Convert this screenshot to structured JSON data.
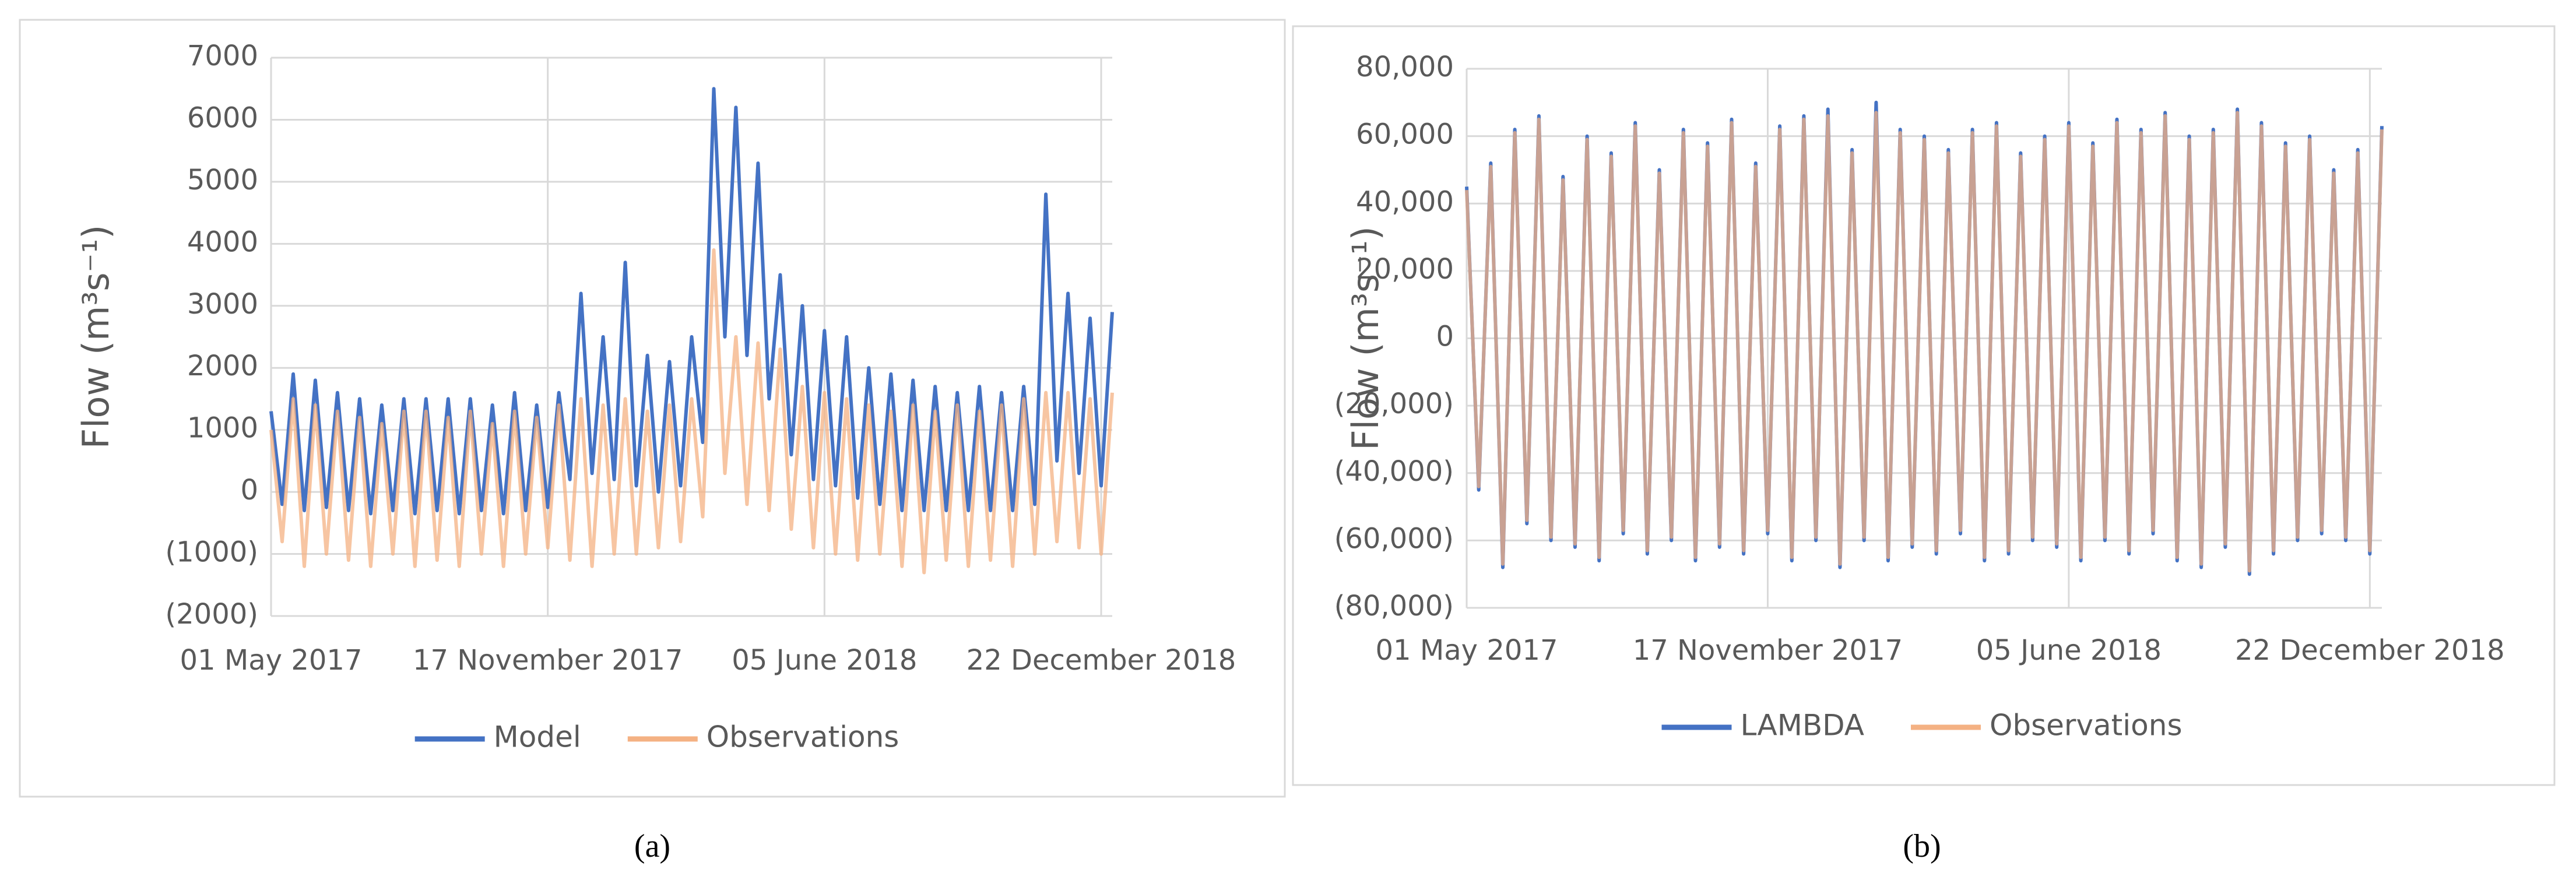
{
  "chart_data": [
    {
      "type": "line",
      "caption": "(a)",
      "y_label": "Flow (m³s⁻¹)",
      "x": [
        "2017-05-01",
        "2017-05-09",
        "2017-05-17",
        "2017-05-25",
        "2017-06-02",
        "2017-06-10",
        "2017-06-18",
        "2017-06-26",
        "2017-07-04",
        "2017-07-12",
        "2017-07-20",
        "2017-07-28",
        "2017-08-05",
        "2017-08-13",
        "2017-08-21",
        "2017-08-29",
        "2017-09-06",
        "2017-09-14",
        "2017-09-22",
        "2017-09-30",
        "2017-10-08",
        "2017-10-16",
        "2017-10-24",
        "2017-11-01",
        "2017-11-09",
        "2017-11-17",
        "2017-11-25",
        "2017-12-03",
        "2017-12-11",
        "2017-12-19",
        "2017-12-27",
        "2018-01-04",
        "2018-01-12",
        "2018-01-20",
        "2018-01-28",
        "2018-02-05",
        "2018-02-13",
        "2018-02-21",
        "2018-03-01",
        "2018-03-09",
        "2018-03-17",
        "2018-03-25",
        "2018-04-02",
        "2018-04-10",
        "2018-04-18",
        "2018-04-26",
        "2018-05-04",
        "2018-05-12",
        "2018-05-20",
        "2018-05-28",
        "2018-06-05",
        "2018-06-13",
        "2018-06-21",
        "2018-06-29",
        "2018-07-07",
        "2018-07-15",
        "2018-07-23",
        "2018-07-31",
        "2018-08-08",
        "2018-08-16",
        "2018-08-24",
        "2018-09-01",
        "2018-09-09",
        "2018-09-17",
        "2018-09-25",
        "2018-10-03",
        "2018-10-11",
        "2018-10-19",
        "2018-10-27",
        "2018-11-04",
        "2018-11-12",
        "2018-11-20",
        "2018-11-28",
        "2018-12-06",
        "2018-12-14",
        "2018-12-22",
        "2018-12-30"
      ],
      "xlim": [
        "2017-05-01",
        "2018-12-30"
      ],
      "xticks": [
        {
          "value": "2017-05-01",
          "label": "01 May 2017"
        },
        {
          "value": "2017-11-17",
          "label": "17 November 2017"
        },
        {
          "value": "2018-06-05",
          "label": "05 June 2018"
        },
        {
          "value": "2018-12-22",
          "label": "22 December 2018"
        }
      ],
      "ylim": [
        -2000,
        7000
      ],
      "yticks": [
        {
          "value": -2000,
          "label": "(2000)"
        },
        {
          "value": -1000,
          "label": "(1000)"
        },
        0,
        1000,
        2000,
        3000,
        4000,
        5000,
        6000,
        7000
      ],
      "grid": true,
      "series": [
        {
          "name": "Model",
          "color": "#4472c4",
          "values": [
            1300,
            -200,
            1900,
            -300,
            1800,
            -250,
            1600,
            -300,
            1500,
            -350,
            1400,
            -300,
            1500,
            -350,
            1500,
            -300,
            1500,
            -350,
            1500,
            -300,
            1400,
            -350,
            1600,
            -300,
            1400,
            -250,
            1600,
            200,
            3200,
            300,
            2500,
            200,
            3700,
            100,
            2200,
            0,
            2100,
            100,
            2500,
            800,
            6500,
            2500,
            6200,
            2200,
            5300,
            1500,
            3500,
            600,
            3000,
            200,
            2600,
            100,
            2500,
            -100,
            2000,
            -200,
            1900,
            -300,
            1800,
            -300,
            1700,
            -300,
            1600,
            -300,
            1700,
            -300,
            1600,
            -300,
            1700,
            -200,
            4800,
            500,
            3200,
            300,
            2800,
            100,
            2900
          ]
        },
        {
          "name": "Observations",
          "color": "#f4b183",
          "values": [
            1000,
            -800,
            1500,
            -1200,
            1400,
            -1000,
            1300,
            -1100,
            1200,
            -1200,
            1100,
            -1000,
            1300,
            -1200,
            1300,
            -1100,
            1200,
            -1200,
            1300,
            -1000,
            1100,
            -1200,
            1300,
            -1000,
            1200,
            -900,
            1400,
            -1100,
            1500,
            -1200,
            1400,
            -1000,
            1500,
            -1000,
            1300,
            -900,
            1400,
            -800,
            1500,
            -400,
            3900,
            300,
            2500,
            -200,
            2400,
            -300,
            2300,
            -600,
            1700,
            -900,
            1600,
            -1000,
            1500,
            -1100,
            1400,
            -1000,
            1300,
            -1200,
            1400,
            -1300,
            1300,
            -1100,
            1400,
            -1200,
            1300,
            -1100,
            1400,
            -1200,
            1500,
            -1000,
            1600,
            -800,
            1600,
            -900,
            1500,
            -1000,
            1600
          ]
        }
      ]
    },
    {
      "type": "line",
      "caption": "(b)",
      "y_label": "Flow (m³s⁻¹)",
      "x": [
        "2017-05-01",
        "2017-05-09",
        "2017-05-17",
        "2017-05-25",
        "2017-06-02",
        "2017-06-10",
        "2017-06-18",
        "2017-06-26",
        "2017-07-04",
        "2017-07-12",
        "2017-07-20",
        "2017-07-28",
        "2017-08-05",
        "2017-08-13",
        "2017-08-21",
        "2017-08-29",
        "2017-09-06",
        "2017-09-14",
        "2017-09-22",
        "2017-09-30",
        "2017-10-08",
        "2017-10-16",
        "2017-10-24",
        "2017-11-01",
        "2017-11-09",
        "2017-11-17",
        "2017-11-25",
        "2017-12-03",
        "2017-12-11",
        "2017-12-19",
        "2017-12-27",
        "2018-01-04",
        "2018-01-12",
        "2018-01-20",
        "2018-01-28",
        "2018-02-05",
        "2018-02-13",
        "2018-02-21",
        "2018-03-01",
        "2018-03-09",
        "2018-03-17",
        "2018-03-25",
        "2018-04-02",
        "2018-04-10",
        "2018-04-18",
        "2018-04-26",
        "2018-05-04",
        "2018-05-12",
        "2018-05-20",
        "2018-05-28",
        "2018-06-05",
        "2018-06-13",
        "2018-06-21",
        "2018-06-29",
        "2018-07-07",
        "2018-07-15",
        "2018-07-23",
        "2018-07-31",
        "2018-08-08",
        "2018-08-16",
        "2018-08-24",
        "2018-09-01",
        "2018-09-09",
        "2018-09-17",
        "2018-09-25",
        "2018-10-03",
        "2018-10-11",
        "2018-10-19",
        "2018-10-27",
        "2018-11-04",
        "2018-11-12",
        "2018-11-20",
        "2018-11-28",
        "2018-12-06",
        "2018-12-14",
        "2018-12-22",
        "2018-12-30"
      ],
      "xlim": [
        "2017-05-01",
        "2018-12-30"
      ],
      "xticks": [
        {
          "value": "2017-05-01",
          "label": "01 May 2017"
        },
        {
          "value": "2017-11-17",
          "label": "17 November 2017"
        },
        {
          "value": "2018-06-05",
          "label": "05 June 2018"
        },
        {
          "value": "2018-12-22",
          "label": "22 December 2018"
        }
      ],
      "ylim": [
        -80000,
        80000
      ],
      "yticks": [
        {
          "value": -80000,
          "label": "(80,000)"
        },
        {
          "value": -60000,
          "label": "(60,000)"
        },
        {
          "value": -40000,
          "label": "(40,000)"
        },
        {
          "value": -20000,
          "label": "(20,000)"
        },
        0,
        {
          "value": 20000,
          "label": "20,000"
        },
        {
          "value": 40000,
          "label": "40,000"
        },
        {
          "value": 60000,
          "label": "60,000"
        },
        {
          "value": 80000,
          "label": "80,000"
        }
      ],
      "grid": true,
      "series": [
        {
          "name": "LAMBDA",
          "color": "#4472c4",
          "values": [
            45000,
            -45000,
            52000,
            -68000,
            62000,
            -55000,
            66000,
            -60000,
            48000,
            -62000,
            60000,
            -66000,
            55000,
            -58000,
            64000,
            -64000,
            50000,
            -60000,
            62000,
            -66000,
            58000,
            -62000,
            65000,
            -64000,
            52000,
            -58000,
            63000,
            -66000,
            66000,
            -60000,
            68000,
            -68000,
            56000,
            -60000,
            70000,
            -66000,
            62000,
            -62000,
            60000,
            -64000,
            56000,
            -58000,
            62000,
            -66000,
            64000,
            -64000,
            55000,
            -60000,
            60000,
            -62000,
            64000,
            -66000,
            58000,
            -60000,
            65000,
            -64000,
            62000,
            -58000,
            67000,
            -66000,
            60000,
            -68000,
            62000,
            -62000,
            68000,
            -70000,
            64000,
            -64000,
            58000,
            -60000,
            60000,
            -58000,
            50000,
            -60000,
            56000,
            -64000,
            63000
          ]
        },
        {
          "name": "Observations",
          "color": "#f4b183",
          "values": [
            44000,
            -44000,
            51000,
            -67000,
            61000,
            -54000,
            65000,
            -59000,
            47000,
            -61000,
            59000,
            -65000,
            54000,
            -57000,
            63000,
            -63000,
            49000,
            -59000,
            61000,
            -65000,
            57000,
            -61000,
            64000,
            -63000,
            51000,
            -57000,
            62000,
            -65000,
            65000,
            -59000,
            66000,
            -67000,
            55000,
            -59000,
            67000,
            -65000,
            61000,
            -61000,
            59000,
            -63000,
            55000,
            -57000,
            61000,
            -65000,
            63000,
            -63000,
            54000,
            -59000,
            59000,
            -61000,
            63000,
            -65000,
            57000,
            -59000,
            64000,
            -63000,
            61000,
            -57000,
            66000,
            -65000,
            59000,
            -67000,
            61000,
            -61000,
            67000,
            -69000,
            63000,
            -63000,
            57000,
            -59000,
            59000,
            -57000,
            49000,
            -59000,
            55000,
            -63000,
            62000
          ]
        }
      ]
    }
  ]
}
